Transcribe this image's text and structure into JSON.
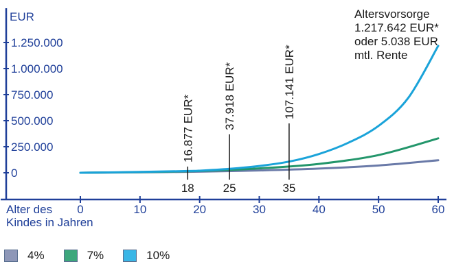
{
  "chart_data": {
    "type": "line",
    "y_unit": "EUR",
    "y_ticks": [
      "1.250.000",
      "1.000.000",
      "750.000",
      "500.000",
      "250.000",
      "0"
    ],
    "y_tick_values": [
      1250000,
      1000000,
      750000,
      500000,
      250000,
      0
    ],
    "ylim": [
      0,
      1300000
    ],
    "x_ticks": [
      "0",
      "10",
      "20",
      "30",
      "40",
      "50",
      "60"
    ],
    "x_tick_values": [
      0,
      10,
      20,
      30,
      40,
      50,
      60
    ],
    "xlim": [
      0,
      60
    ],
    "xlabel_line1": "Alter des",
    "xlabel_line2": "Kindes in Jahren",
    "series": [
      {
        "name": "4%",
        "color": "#6a7aa8",
        "x": [
          0,
          10,
          20,
          30,
          40,
          50,
          60
        ],
        "y": [
          0,
          4000,
          11000,
          22000,
          40000,
          70000,
          120000
        ]
      },
      {
        "name": "7%",
        "color": "#23966b",
        "x": [
          0,
          10,
          20,
          30,
          40,
          50,
          60
        ],
        "y": [
          0,
          6000,
          17000,
          42000,
          85000,
          170000,
          330000
        ]
      },
      {
        "name": "10%",
        "color": "#1aa3d9",
        "x": [
          0,
          10,
          18,
          20,
          25,
          30,
          35,
          40,
          45,
          50,
          55,
          60
        ],
        "y": [
          0,
          8000,
          16877,
          20000,
          37918,
          65000,
          107141,
          180000,
          290000,
          450000,
          720000,
          1217642
        ]
      }
    ],
    "markers": [
      {
        "x": 18,
        "x_label": "18",
        "label": "16.877 EUR*",
        "value": 16877
      },
      {
        "x": 25,
        "x_label": "25",
        "label": "37.918 EUR*",
        "value": 37918
      },
      {
        "x": 35,
        "x_label": "35",
        "label": "107.141 EUR*",
        "value": 107141
      }
    ],
    "annotation": [
      "Altersvorsorge",
      "1.217.642 EUR*",
      "oder 5.038 EUR",
      "mtl. Rente"
    ],
    "axis_color": "#1f3f99",
    "grid": false
  },
  "legend": [
    {
      "label": "4%",
      "color": "#8e97b8"
    },
    {
      "label": "7%",
      "color": "#3da77c"
    },
    {
      "label": "10%",
      "color": "#3ab6e6"
    }
  ]
}
